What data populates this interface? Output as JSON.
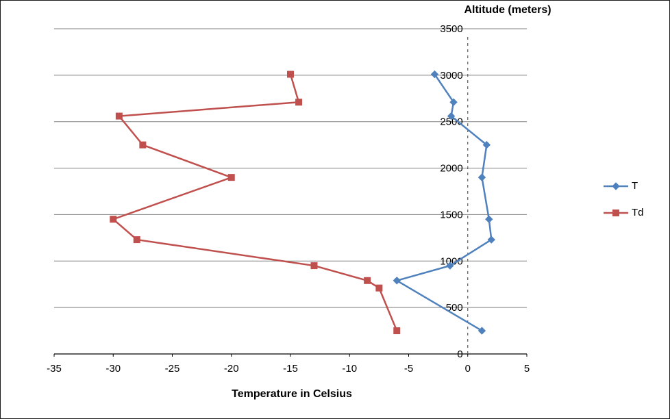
{
  "chart_data": {
    "type": "line",
    "title": "",
    "altitude_axis_title": "Altitude (meters)",
    "xlabel": "Temperature in Celsius",
    "ylabel": "Altitude (meters)",
    "xlim": [
      -35,
      5
    ],
    "ylim": [
      0,
      3500
    ],
    "x_ticks": [
      -35,
      -30,
      -25,
      -20,
      -15,
      -10,
      -5,
      0,
      5
    ],
    "y_ticks": [
      0,
      500,
      1000,
      1500,
      2000,
      2500,
      3000,
      3500
    ],
    "grid": "horizontal-major",
    "legend_position": "right",
    "point_format": "[temperature_celsius, altitude_meters]",
    "colors": {
      "grid": "#808080",
      "axis": "#000000",
      "zero_axis_dashed": "#595959",
      "series_T": "#4F81BD",
      "series_Td": "#C0504D"
    },
    "series": [
      {
        "name": "T",
        "color": "#4F81BD",
        "marker": "diamond",
        "points": [
          [
            1.2,
            250
          ],
          [
            -6,
            790
          ],
          [
            -1.5,
            950
          ],
          [
            2,
            1230
          ],
          [
            1.8,
            1450
          ],
          [
            1.2,
            1900
          ],
          [
            1.6,
            2250
          ],
          [
            -1.4,
            2560
          ],
          [
            -1.2,
            2710
          ],
          [
            -2.8,
            3010
          ]
        ]
      },
      {
        "name": "Td",
        "color": "#C0504D",
        "marker": "square",
        "points": [
          [
            -6,
            250
          ],
          [
            -7.5,
            710
          ],
          [
            -8.5,
            790
          ],
          [
            -13,
            950
          ],
          [
            -28,
            1230
          ],
          [
            -30,
            1450
          ],
          [
            -20,
            1900
          ],
          [
            -27.5,
            2250
          ],
          [
            -29.5,
            2560
          ],
          [
            -14.3,
            2710
          ],
          [
            -15,
            3010
          ]
        ]
      }
    ]
  }
}
